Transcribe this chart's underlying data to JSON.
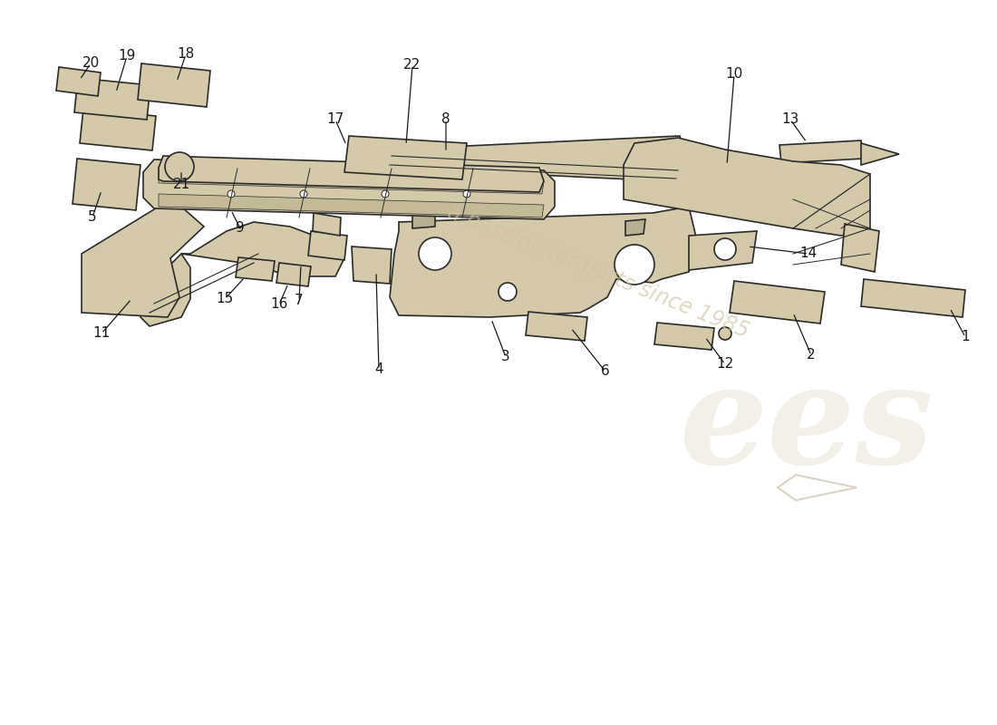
{
  "title": "",
  "background_color": "#ffffff",
  "watermark_text": "a passion for parts since 1985",
  "watermark_logo": "ees",
  "parts_color": "#d4c9a8",
  "parts_edge_color": "#2a2a2a",
  "line_color": "#1a1a1a",
  "label_color": "#1a1a1a",
  "label_fontsize": 11,
  "figsize": [
    11.0,
    8.0
  ],
  "dpi": 100
}
